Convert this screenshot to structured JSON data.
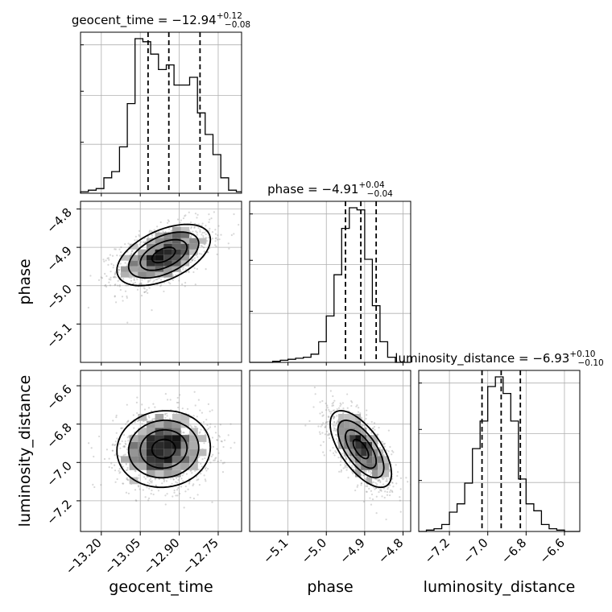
{
  "chart_data": {
    "type": "corner",
    "parameters": [
      {
        "name": "geocent_time",
        "label": "geocent_time",
        "median": -12.94,
        "plus": 0.12,
        "minus": 0.08,
        "title": "geocent_time = −12.94",
        "err_plus": "+0.12",
        "err_minus": "−0.08",
        "range": [
          -13.28,
          -12.66
        ],
        "ticks": [
          -13.2,
          -13.05,
          -12.9,
          -12.75
        ],
        "tick_labels": [
          "−13.20",
          "−13.05",
          "−12.90",
          "−12.75"
        ],
        "quantiles": [
          -13.02,
          -12.94,
          -12.82
        ],
        "hist": {
          "bin_edges": [
            -13.28,
            -13.25,
            -13.22,
            -13.19,
            -13.16,
            -13.13,
            -13.1,
            -13.07,
            -13.04,
            -13.01,
            -12.98,
            -12.95,
            -12.92,
            -12.89,
            -12.86,
            -12.83,
            -12.8,
            -12.77,
            -12.74,
            -12.71,
            -12.68,
            -12.66
          ],
          "counts": [
            1,
            2,
            3,
            10,
            14,
            30,
            58,
            100,
            98,
            90,
            80,
            83,
            70,
            70,
            75,
            52,
            38,
            25,
            10,
            2,
            1
          ]
        }
      },
      {
        "name": "phase",
        "label": "phase",
        "median": -4.91,
        "plus": 0.04,
        "minus": 0.04,
        "title": "phase = −4.91",
        "err_plus": "+0.04",
        "err_minus": "−0.04",
        "range": [
          -5.2,
          -4.78
        ],
        "ticks": [
          -5.1,
          -5.0,
          -4.9,
          -4.8
        ],
        "tick_labels": [
          "−5.1",
          "−5.0",
          "−4.9",
          "−4.8"
        ],
        "quantiles": [
          -4.95,
          -4.91,
          -4.87
        ],
        "hist": {
          "bin_edges": [
            -5.2,
            -5.18,
            -5.16,
            -5.14,
            -5.12,
            -5.1,
            -5.08,
            -5.06,
            -5.04,
            -5.02,
            -5.0,
            -4.98,
            -4.96,
            -4.94,
            -4.92,
            -4.9,
            -4.88,
            -4.86,
            -4.84,
            -4.82,
            -4.8,
            -4.78
          ],
          "counts": [
            0,
            0,
            0,
            1,
            2,
            3,
            4,
            5,
            8,
            20,
            45,
            85,
            130,
            150,
            148,
            100,
            55,
            20,
            5,
            0,
            0
          ]
        }
      },
      {
        "name": "luminosity_distance",
        "label": "luminosity_distance",
        "median": -6.93,
        "plus": 0.1,
        "minus": 0.1,
        "title": "luminosity_distance = −6.93",
        "err_plus": "+0.10",
        "err_minus": "−0.10",
        "range": [
          -7.36,
          -6.52
        ],
        "ticks": [
          -7.2,
          -7.0,
          -6.8,
          -6.6
        ],
        "tick_labels": [
          "−7.2",
          "−7.0",
          "−6.8",
          "−6.6"
        ],
        "quantiles": [
          -7.03,
          -6.93,
          -6.83
        ],
        "hist": {
          "bin_edges": [
            -7.36,
            -7.32,
            -7.28,
            -7.24,
            -7.2,
            -7.16,
            -7.12,
            -7.08,
            -7.04,
            -7.0,
            -6.96,
            -6.92,
            -6.88,
            -6.84,
            -6.8,
            -6.76,
            -6.72,
            -6.68,
            -6.64,
            -6.6,
            -6.56,
            -6.52
          ],
          "counts": [
            0,
            1,
            2,
            5,
            14,
            20,
            35,
            60,
            80,
            105,
            112,
            100,
            80,
            38,
            20,
            15,
            5,
            2,
            1,
            0,
            0
          ]
        }
      }
    ],
    "pairs": [
      {
        "x": "geocent_time",
        "y": "phase",
        "center": [
          -12.96,
          -4.92
        ],
        "spread": [
          0.09,
          0.04
        ],
        "corr": 0.5,
        "n_points": 1400
      },
      {
        "x": "geocent_time",
        "y": "luminosity_distance",
        "center": [
          -12.96,
          -6.93
        ],
        "spread": [
          0.09,
          0.1
        ],
        "corr": 0.05,
        "n_points": 1400
      },
      {
        "x": "phase",
        "y": "luminosity_distance",
        "center": [
          -4.91,
          -6.93
        ],
        "spread": [
          0.04,
          0.1
        ],
        "corr": -0.65,
        "n_points": 1400
      }
    ],
    "grid": true,
    "quantile_line_style": "dashed"
  },
  "colors": {
    "line": "#000000",
    "grid": "#b0b0b0",
    "scatter": "#8c8c8c",
    "background": "#ffffff"
  }
}
